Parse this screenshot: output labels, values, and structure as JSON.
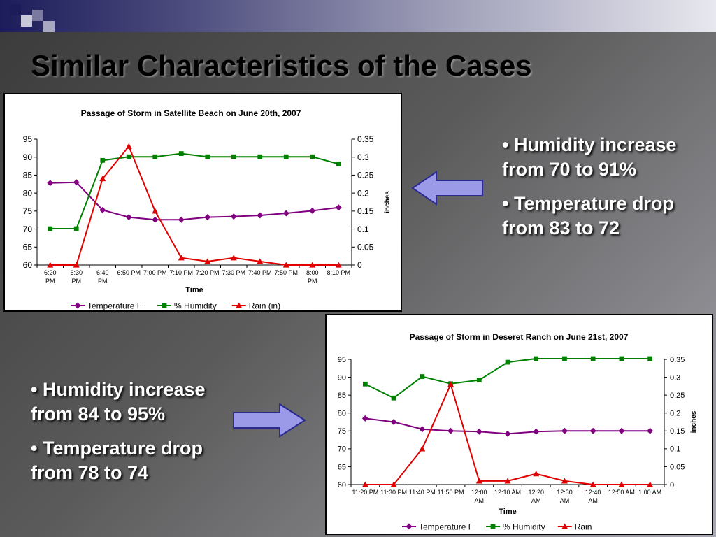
{
  "slide": {
    "title": "Similar Characteristics of the Cases",
    "bullets_top": [
      "• Humidity increase from 70 to 91%",
      "• Temperature drop from 83 to 72"
    ],
    "bullets_bottom": [
      "• Humidity increase from 84 to 95%",
      "• Temperature drop from 78 to 74"
    ],
    "colors": {
      "temperature": "#800080",
      "humidity": "#008000",
      "rain": "#e00000",
      "arrow_fill": "#9a9ae8"
    }
  },
  "chart_data": [
    {
      "type": "line",
      "title": "Passage of Storm in Satellite Beach on June 20th, 2007",
      "xlabel": "Time",
      "ylabel": "",
      "y2label": "inches",
      "categories": [
        [
          "6:20",
          "PM"
        ],
        [
          "6:30",
          "PM"
        ],
        [
          "6:40",
          "PM"
        ],
        [
          "6:50 PM"
        ],
        [
          "7:00 PM"
        ],
        [
          "7:10 PM"
        ],
        [
          "7:20 PM"
        ],
        [
          "7:30 PM"
        ],
        [
          "7:40 PM"
        ],
        [
          "7:50 PM"
        ],
        [
          "8:00",
          "PM"
        ],
        [
          "8:10 PM"
        ]
      ],
      "ylim": [
        60,
        95
      ],
      "y2lim": [
        0,
        0.35
      ],
      "yticks": [
        "60",
        "65",
        "70",
        "75",
        "80",
        "85",
        "90",
        "95"
      ],
      "y2ticks": [
        "0",
        "0.05",
        "0.1",
        "0.15",
        "0.2",
        "0.25",
        "0.3",
        "0.35"
      ],
      "series": [
        {
          "name": "Temperature F",
          "axis": "left",
          "marker": "diamond",
          "color": "#800080",
          "values": [
            82.8,
            83,
            75.3,
            73.3,
            72.6,
            72.6,
            73.3,
            73.5,
            73.8,
            74.4,
            75.1,
            76
          ]
        },
        {
          "name": "% Humidity",
          "axis": "left",
          "marker": "square",
          "color": "#008000",
          "values": [
            70.1,
            70.1,
            89.1,
            90.1,
            90.1,
            91,
            90.1,
            90.1,
            90.1,
            90.1,
            90.1,
            88.1
          ]
        },
        {
          "name": "Rain (in)",
          "axis": "right",
          "marker": "triangle",
          "color": "#e00000",
          "values": [
            0,
            0,
            0.24,
            0.33,
            0.15,
            0.02,
            0.01,
            0.02,
            0.01,
            0,
            0,
            0
          ]
        }
      ],
      "legend_position": "bottom"
    },
    {
      "type": "line",
      "title": "Passage of Storm in Deseret Ranch on June 21st, 2007",
      "xlabel": "Time",
      "ylabel": "",
      "y2label": "inches",
      "categories": [
        [
          "11:20 PM"
        ],
        [
          "11:30 PM"
        ],
        [
          "11:40 PM"
        ],
        [
          "11:50 PM"
        ],
        [
          "12:00",
          "AM"
        ],
        [
          "12:10 AM"
        ],
        [
          "12:20",
          "AM"
        ],
        [
          "12:30",
          "AM"
        ],
        [
          "12:40",
          "AM"
        ],
        [
          "12:50 AM"
        ],
        [
          "1:00 AM"
        ]
      ],
      "ylim": [
        60,
        95
      ],
      "y2lim": [
        0,
        0.35
      ],
      "yticks": [
        "60",
        "65",
        "70",
        "75",
        "80",
        "85",
        "90",
        "95"
      ],
      "y2ticks": [
        "0",
        "0.05",
        "0.1",
        "0.15",
        "0.2",
        "0.25",
        "0.3",
        "0.35"
      ],
      "series": [
        {
          "name": "Temperature F",
          "axis": "left",
          "marker": "diamond",
          "color": "#800080",
          "values": [
            78.5,
            77.5,
            75.5,
            75,
            74.8,
            74.2,
            74.8,
            75,
            75,
            75,
            75
          ]
        },
        {
          "name": "% Humidity",
          "axis": "left",
          "marker": "square",
          "color": "#008000",
          "values": [
            88.1,
            84.2,
            90.2,
            88.2,
            89.2,
            94.2,
            95.2,
            95.2,
            95.2,
            95.2,
            95.2
          ]
        },
        {
          "name": "Rain",
          "axis": "right",
          "marker": "triangle",
          "color": "#e00000",
          "values": [
            0,
            0,
            0.1,
            0.28,
            0.01,
            0.01,
            0.03,
            0.01,
            0,
            0,
            0
          ]
        }
      ],
      "legend_position": "bottom"
    }
  ]
}
